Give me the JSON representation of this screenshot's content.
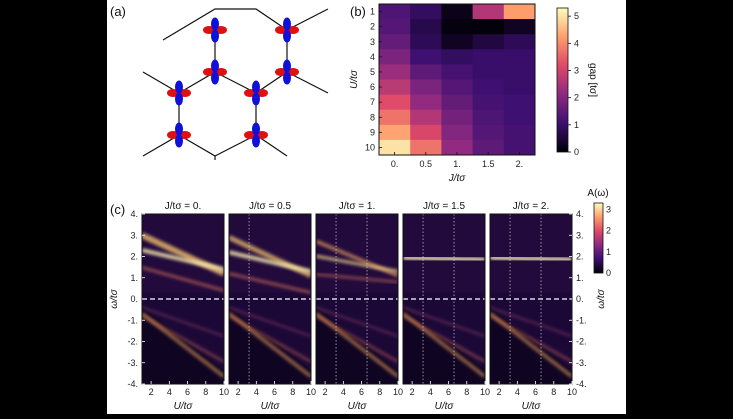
{
  "panel_labels": {
    "a": "(a)",
    "b": "(b)",
    "c": "(c)"
  },
  "chart_data": [
    {
      "type": "heatmap",
      "panel": "(b)",
      "xlabel": "J/tσ",
      "ylabel": "U/tσ",
      "x_ticks": [
        "0.",
        "0.5",
        "1.",
        "1.5",
        "2."
      ],
      "y_ticks": [
        "1",
        "2",
        "3",
        "4",
        "5",
        "6",
        "7",
        "8",
        "9",
        "10"
      ],
      "colorbar": {
        "label": "gap [tσ]",
        "ticks": [
          "0",
          "1",
          "2",
          "3",
          "4",
          "5"
        ],
        "range": [
          0,
          5.3
        ]
      },
      "x": [
        0,
        0.5,
        1,
        1.5,
        2
      ],
      "y": [
        1,
        2,
        3,
        4,
        5,
        6,
        7,
        8,
        9,
        10
      ],
      "gap": [
        [
          1.3,
          0.9,
          0.2,
          2.6,
          4.2
        ],
        [
          1.4,
          0.7,
          0.1,
          0.05,
          0.3
        ],
        [
          1.6,
          0.8,
          0.3,
          0.6,
          0.8
        ],
        [
          1.9,
          1.1,
          0.9,
          1.0,
          1.0
        ],
        [
          2.3,
          1.5,
          1.2,
          1.0,
          1.0
        ],
        [
          2.7,
          1.9,
          1.4,
          1.1,
          1.0
        ],
        [
          3.2,
          2.2,
          1.6,
          1.2,
          1.1
        ],
        [
          3.7,
          2.6,
          1.8,
          1.3,
          1.1
        ],
        [
          4.3,
          3.1,
          2.0,
          1.4,
          1.2
        ],
        [
          5.0,
          3.7,
          2.2,
          1.5,
          1.2
        ]
      ]
    },
    {
      "type": "heatmap",
      "panel": "(c)",
      "titles": [
        "J/tσ = 0.",
        "J/tσ = 0.5",
        "J/tσ = 1.",
        "J/tσ = 1.5",
        "J/tσ = 2."
      ],
      "J": [
        0,
        0.5,
        1,
        1.5,
        2
      ],
      "xlabel": "U/tσ",
      "ylabel": "ω/tσ",
      "x_ticks": [
        "2",
        "4",
        "6",
        "8",
        "10"
      ],
      "xlim": [
        1,
        10
      ],
      "y_ticks": [
        "4.",
        "3.",
        "2.",
        "1.",
        "0.",
        "-1.",
        "-2.",
        "-3.",
        "-4."
      ],
      "ylim": [
        -4,
        4
      ],
      "colorbar": {
        "label": "A(ω)",
        "ticks": [
          "0",
          "1",
          "2",
          "3"
        ],
        "range": [
          0,
          3.3
        ]
      }
    }
  ]
}
